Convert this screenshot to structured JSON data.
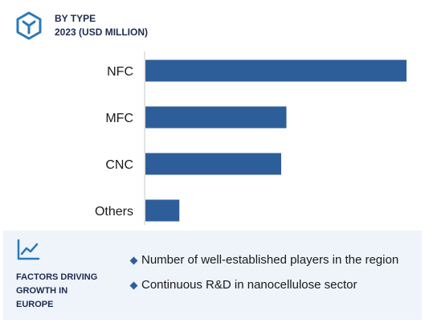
{
  "header": {
    "title": "BY TYPE",
    "subtitle": "2023 (USD MILLION)",
    "icon": "cube-icon",
    "accent": "#2b79b8"
  },
  "chart_data": {
    "type": "bar",
    "orientation": "horizontal",
    "categories": [
      "NFC",
      "MFC",
      "CNC",
      "Others"
    ],
    "values": [
      100,
      54,
      52,
      13
    ],
    "xlim": [
      0,
      100
    ],
    "grid": false,
    "bar_color": "#2e5e9a"
  },
  "drivers": {
    "icon": "line-chart-icon",
    "title_lines": [
      "FACTORS DRIVING",
      "GROWTH IN",
      "EUROPE"
    ],
    "items": [
      "Number of well-established players in the region",
      "Continuous R&D in nanocellulose sector"
    ],
    "background": "#eef4fa"
  }
}
